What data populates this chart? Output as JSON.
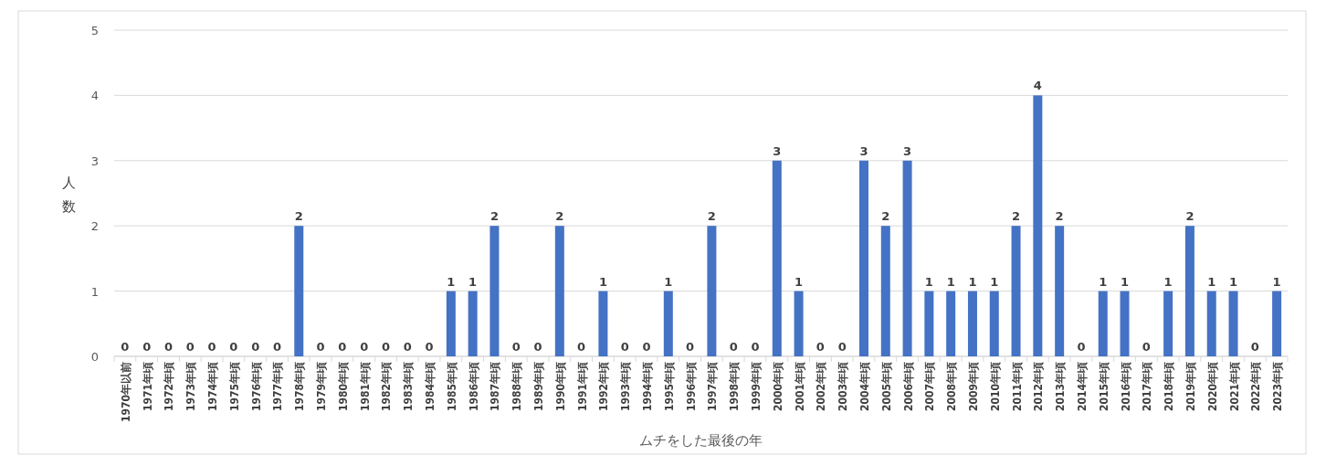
{
  "chart_data": {
    "type": "bar",
    "xlabel": "ムチをした最後の年",
    "ylabel": "人数",
    "categories": [
      "1970年以前",
      "1971年頃",
      "1972年頃",
      "1973年頃",
      "1974年頃",
      "1975年頃",
      "1976年頃",
      "1977年頃",
      "1978年頃",
      "1979年頃",
      "1980年頃",
      "1981年頃",
      "1982年頃",
      "1983年頃",
      "1984年頃",
      "1985年頃",
      "1986年頃",
      "1987年頃",
      "1988年頃",
      "1989年頃",
      "1990年頃",
      "1991年頃",
      "1992年頃",
      "1993年頃",
      "1994年頃",
      "1995年頃",
      "1996年頃",
      "1997年頃",
      "1998年頃",
      "1999年頃",
      "2000年頃",
      "2001年頃",
      "2002年頃",
      "2003年頃",
      "2004年頃",
      "2005年頃",
      "2006年頃",
      "2007年頃",
      "2008年頃",
      "2009年頃",
      "2010年頃",
      "2011年頃",
      "2012年頃",
      "2013年頃",
      "2014年頃",
      "2015年頃",
      "2016年頃",
      "2017年頃",
      "2018年頃",
      "2019年頃",
      "2020年頃",
      "2021年頃",
      "2022年頃",
      "2023年頃"
    ],
    "values": [
      0,
      0,
      0,
      0,
      0,
      0,
      0,
      0,
      2,
      0,
      0,
      0,
      0,
      0,
      0,
      1,
      1,
      2,
      0,
      0,
      2,
      0,
      1,
      0,
      0,
      1,
      0,
      2,
      0,
      0,
      3,
      1,
      0,
      0,
      3,
      2,
      3,
      1,
      1,
      1,
      1,
      2,
      4,
      2,
      0,
      1,
      1,
      0,
      1,
      2,
      1,
      1,
      0,
      1
    ],
    "color": "#4472c4",
    "ylim": [
      0,
      5
    ],
    "yticks": [
      0,
      1,
      2,
      3,
      4,
      5
    ],
    "grid": "y",
    "data_labels": true
  }
}
